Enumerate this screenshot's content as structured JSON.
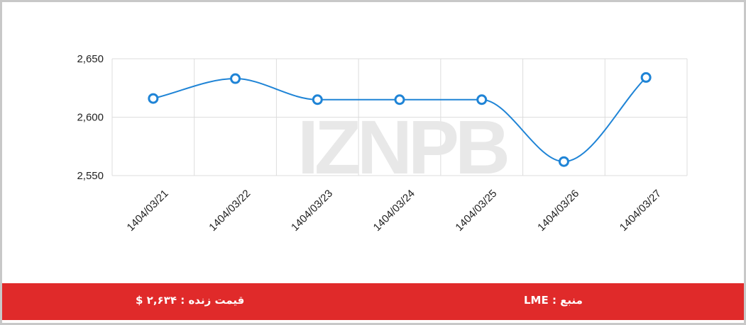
{
  "chart_data": {
    "type": "line",
    "categories": [
      "1404/03/21",
      "1404/03/22",
      "1404/03/23",
      "1404/03/24",
      "1404/03/25",
      "1404/03/26",
      "1404/03/27"
    ],
    "series": [
      {
        "color": "#1f84d6",
        "values": [
          2616,
          2633,
          2615,
          2615,
          2615,
          2562,
          2634
        ]
      }
    ],
    "ylim": [
      2550,
      2650
    ],
    "yticks": [
      {
        "value": 2550,
        "label": "2,550"
      },
      {
        "value": 2600,
        "label": "2,600"
      },
      {
        "value": 2650,
        "label": "2,650"
      }
    ],
    "grid": true,
    "watermark": "IZNPB"
  },
  "footer": {
    "price": "قیمت زنده : ۲,۶۳۴ $",
    "source": "منبع : LME"
  }
}
